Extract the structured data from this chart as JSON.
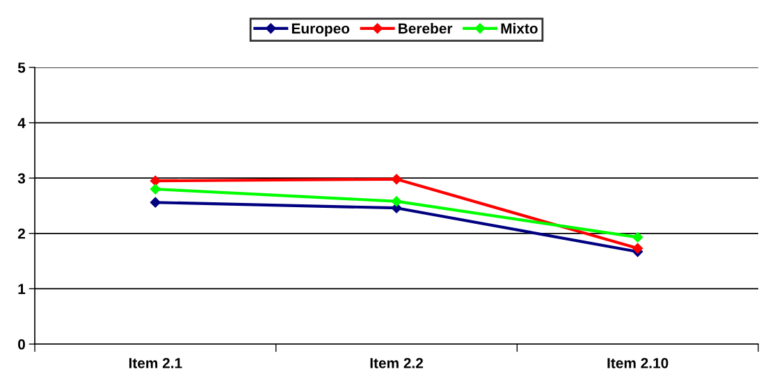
{
  "chart_data": {
    "type": "line",
    "categories": [
      "Item 2.1",
      "Item 2.2",
      "Item 2.10"
    ],
    "series": [
      {
        "name": "Europeo",
        "color": "#000080",
        "values": [
          2.56,
          2.46,
          1.67
        ]
      },
      {
        "name": "Bereber",
        "color": "#ff0000",
        "values": [
          2.95,
          2.98,
          1.73
        ]
      },
      {
        "name": "Mixto",
        "color": "#00ff00",
        "values": [
          2.8,
          2.58,
          1.93
        ]
      }
    ],
    "ylim": [
      0,
      5
    ],
    "yticks": [
      0,
      1,
      2,
      3,
      4,
      5
    ],
    "grid": "y",
    "legend": "top",
    "marker": "diamond",
    "line_style": "solid"
  }
}
